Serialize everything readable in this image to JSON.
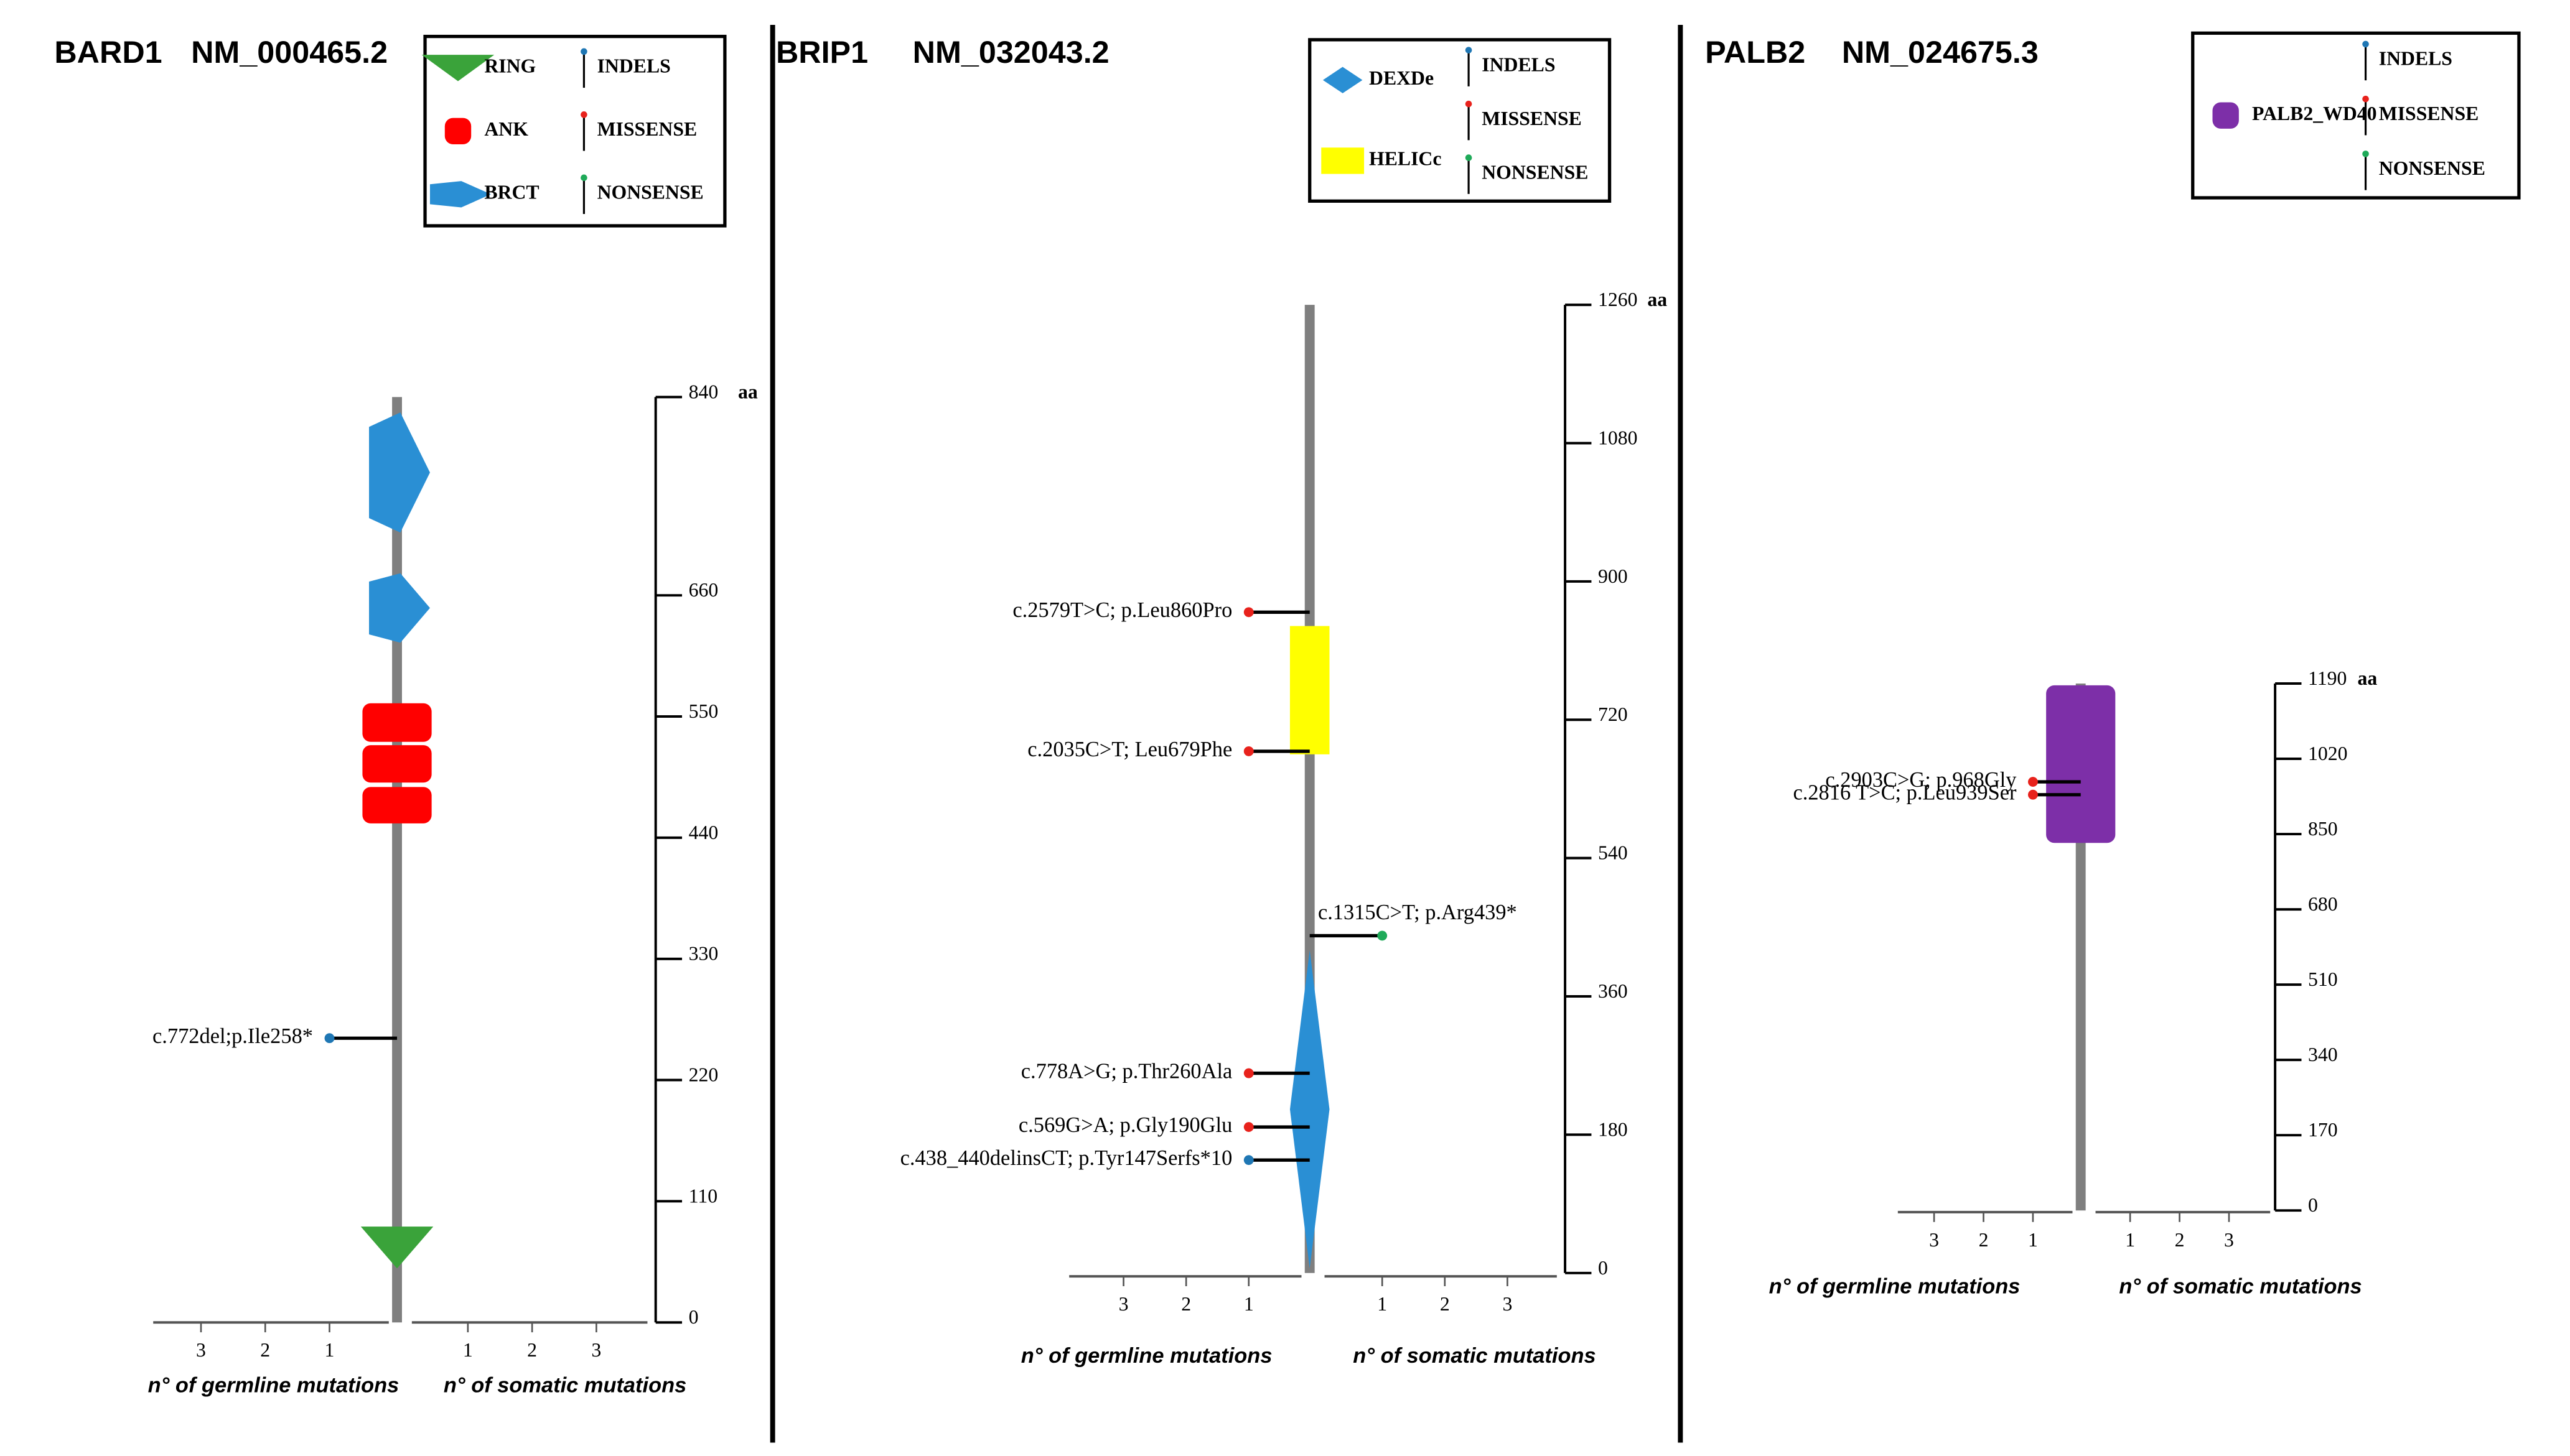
{
  "chart_data": [
    {
      "type": "lollipop",
      "title": "BARD1",
      "transcript": "NM_000465.2",
      "unit": "aa",
      "ylim": [
        0,
        840
      ],
      "yticks": [
        0,
        110,
        220,
        330,
        440,
        550,
        660,
        840
      ],
      "germline_ticks": [
        3,
        2,
        1
      ],
      "somatic_ticks": [
        1,
        2,
        3
      ],
      "germline_label": "n° of germline mutations",
      "somatic_label": "n° of somatic mutations",
      "domains": [
        {
          "name": "RING",
          "shape": "triangle",
          "color": "#3aa33a",
          "regions": [
            [
              49,
              87
            ]
          ]
        },
        {
          "name": "ANK",
          "shape": "roundrect",
          "color": "#ff0000",
          "regions": [
            [
              453,
              486
            ],
            [
              490,
              524
            ],
            [
              527,
              562
            ]
          ]
        },
        {
          "name": "BRCT",
          "shape": "pentagon",
          "color": "#2a8fd4",
          "regions": [
            [
              617,
              680
            ],
            [
              717,
              826
            ]
          ]
        }
      ],
      "mutation_types": [
        {
          "name": "INDELS",
          "color": "#1f77b4"
        },
        {
          "name": "MISSENSE",
          "color": "#e8221c"
        },
        {
          "name": "NONSENSE",
          "color": "#1faa59"
        }
      ],
      "mutations": [
        {
          "label": "c.772del;p.Ile258*",
          "position": 258,
          "type": "INDELS",
          "origin": "germline",
          "count": 1
        }
      ]
    },
    {
      "type": "lollipop",
      "title": "BRIP1",
      "transcript": "NM_032043.2",
      "unit": "aa",
      "ylim": [
        0,
        1260
      ],
      "yticks": [
        0,
        180,
        360,
        540,
        720,
        900,
        1080,
        1260
      ],
      "germline_ticks": [
        3,
        2,
        1
      ],
      "somatic_ticks": [
        1,
        2,
        3
      ],
      "germline_label": "n° of germline mutations",
      "somatic_label": "n° of somatic mutations",
      "domains": [
        {
          "name": "DEXDe",
          "shape": "diamond",
          "color": "#2a8fd4",
          "regions": [
            [
              6,
              420
            ]
          ]
        },
        {
          "name": "HELICc",
          "shape": "rect",
          "color": "#ffff00",
          "regions": [
            [
              675,
              842
            ]
          ]
        }
      ],
      "mutation_types": [
        {
          "name": "INDELS",
          "color": "#1f77b4"
        },
        {
          "name": "MISSENSE",
          "color": "#e8221c"
        },
        {
          "name": "NONSENSE",
          "color": "#1faa59"
        }
      ],
      "mutations": [
        {
          "label": "c.2579T>C;  p.Leu860Pro",
          "position": 860,
          "type": "MISSENSE",
          "origin": "germline",
          "count": 1
        },
        {
          "label": "c.2035C>T;  Leu679Phe",
          "position": 679,
          "type": "MISSENSE",
          "origin": "germline",
          "count": 1
        },
        {
          "label": "c.1315C>T;  p.Arg439*",
          "position": 439,
          "type": "NONSENSE",
          "origin": "somatic",
          "count": 1
        },
        {
          "label": "c.778A>G;  p.Thr260Ala",
          "position": 260,
          "type": "MISSENSE",
          "origin": "germline",
          "count": 1
        },
        {
          "label": "c.569G>A;  p.Gly190Glu",
          "position": 190,
          "type": "MISSENSE",
          "origin": "germline",
          "count": 1
        },
        {
          "label": "c.438_440delinsCT;  p.Tyr147Serfs*10",
          "position": 147,
          "type": "INDELS",
          "origin": "germline",
          "count": 1
        }
      ]
    },
    {
      "type": "lollipop",
      "title": "PALB2",
      "transcript": "NM_024675.3",
      "unit": "aa",
      "ylim": [
        0,
        1190
      ],
      "yticks": [
        0,
        170,
        340,
        510,
        680,
        850,
        1020,
        1190
      ],
      "germline_ticks": [
        3,
        2,
        1
      ],
      "somatic_ticks": [
        1,
        2,
        3
      ],
      "germline_label": "n° of germline mutations",
      "somatic_label": "n° of somatic mutations",
      "domains": [
        {
          "name": "PALB2_WD40",
          "shape": "roundrect",
          "color": "#7d2fa8",
          "regions": [
            [
              830,
              1186
            ]
          ]
        }
      ],
      "mutation_types": [
        {
          "name": "INDELS",
          "color": "#1f77b4"
        },
        {
          "name": "MISSENSE",
          "color": "#e8221c"
        },
        {
          "name": "NONSENSE",
          "color": "#1faa59"
        }
      ],
      "mutations": [
        {
          "label": "c.2903C>G;  p.968Gly",
          "position": 968,
          "type": "MISSENSE",
          "origin": "germline",
          "count": 1
        },
        {
          "label": "c.2816 T>C; p.Leu939Ser",
          "position": 939,
          "type": "MISSENSE",
          "origin": "germline",
          "count": 1
        }
      ]
    }
  ]
}
